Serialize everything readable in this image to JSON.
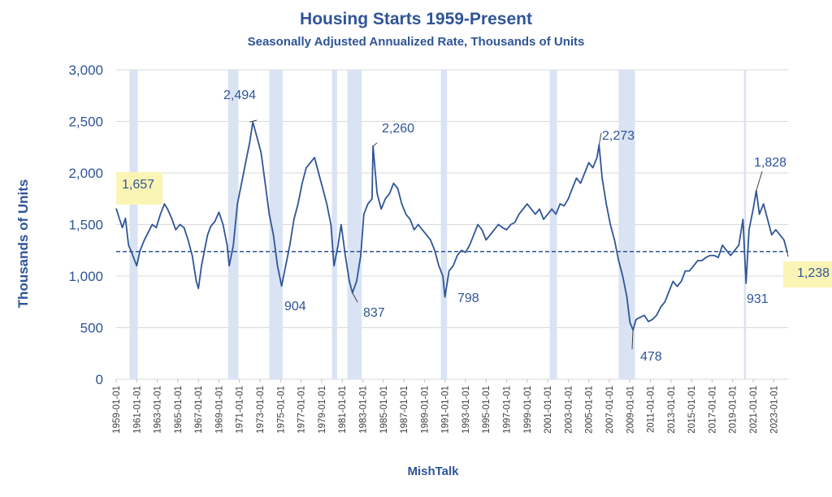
{
  "colors": {
    "line": "#2f5597",
    "recession": "#dae3f3",
    "highlight": "#fbf5b5",
    "text": "#2f5597",
    "grid": "#d9d9d9"
  },
  "chart_data": {
    "type": "line",
    "title": "Housing Starts 1959-Present",
    "subtitle": "Seasonally Adjusted Annualized Rate, Thousands of Units",
    "xlabel": "MishTalk",
    "ylabel": "Thousands of Units",
    "ylim": [
      0,
      3000
    ],
    "xlim": [
      1959.0,
      2024.4
    ],
    "grid": "horizontal",
    "y_ticks": [
      0,
      500,
      1000,
      1500,
      2000,
      2500,
      3000
    ],
    "y_tick_labels": [
      "0",
      "500",
      "1,000",
      "1,500",
      "2,000",
      "2,500",
      "3,000"
    ],
    "x_tick_labels": [
      "1959-01-01",
      "1961-01-01",
      "1963-01-01",
      "1965-01-01",
      "1967-01-01",
      "1969-01-01",
      "1971-01-01",
      "1973-01-01",
      "1975-01-01",
      "1977-01-01",
      "1979-01-01",
      "1981-01-01",
      "1983-01-01",
      "1985-01-01",
      "1987-01-01",
      "1989-01-01",
      "1991-01-01",
      "1993-01-01",
      "1995-01-01",
      "1997-01-01",
      "1999-01-01",
      "2001-01-01",
      "2003-01-01",
      "2005-01-01",
      "2007-01-01",
      "2009-01-01",
      "2011-01-01",
      "2013-01-01",
      "2015-01-01",
      "2017-01-01",
      "2019-01-01",
      "2021-01-01",
      "2023-01-01"
    ],
    "recessions": [
      [
        1960.3,
        1961.1
      ],
      [
        1969.9,
        1970.9
      ],
      [
        1973.9,
        1975.2
      ],
      [
        1980.0,
        1980.5
      ],
      [
        1981.5,
        1982.9
      ],
      [
        1990.6,
        1991.2
      ],
      [
        2001.2,
        2001.9
      ],
      [
        2007.9,
        2009.5
      ],
      [
        2020.1,
        2020.3
      ]
    ],
    "reference_line": {
      "value": 1238,
      "style": "dashed"
    },
    "annotations": [
      {
        "text": "1,657",
        "x": 1959.0,
        "y": 1657,
        "highlight": true
      },
      {
        "text": "2,494",
        "x": 1972.0,
        "y": 2494,
        "highlight": false
      },
      {
        "text": "904",
        "x": 1975.1,
        "y": 904,
        "highlight": false
      },
      {
        "text": "2,260",
        "x": 1984.0,
        "y": 2260,
        "highlight": false
      },
      {
        "text": "837",
        "x": 1982.0,
        "y": 837,
        "highlight": false
      },
      {
        "text": "798",
        "x": 1991.0,
        "y": 798,
        "highlight": false
      },
      {
        "text": "2,273",
        "x": 2006.0,
        "y": 2273,
        "highlight": false
      },
      {
        "text": "478",
        "x": 2009.3,
        "y": 478,
        "highlight": false
      },
      {
        "text": "1,828",
        "x": 2021.3,
        "y": 1828,
        "highlight": false
      },
      {
        "text": "931",
        "x": 2020.3,
        "y": 931,
        "highlight": false
      },
      {
        "text": "1,238",
        "x": 2024.3,
        "y": 1238,
        "highlight": true
      }
    ],
    "series": [
      {
        "values": [
          [
            1959.0,
            1657
          ],
          [
            1959.3,
            1560
          ],
          [
            1959.6,
            1470
          ],
          [
            1959.9,
            1560
          ],
          [
            1960.2,
            1300
          ],
          [
            1960.5,
            1230
          ],
          [
            1960.8,
            1150
          ],
          [
            1961.0,
            1100
          ],
          [
            1961.3,
            1240
          ],
          [
            1961.7,
            1340
          ],
          [
            1962.1,
            1420
          ],
          [
            1962.5,
            1500
          ],
          [
            1962.9,
            1470
          ],
          [
            1963.3,
            1600
          ],
          [
            1963.7,
            1700
          ],
          [
            1964.0,
            1650
          ],
          [
            1964.4,
            1560
          ],
          [
            1964.8,
            1450
          ],
          [
            1965.2,
            1500
          ],
          [
            1965.6,
            1470
          ],
          [
            1966.0,
            1350
          ],
          [
            1966.4,
            1200
          ],
          [
            1966.8,
            950
          ],
          [
            1967.0,
            880
          ],
          [
            1967.3,
            1100
          ],
          [
            1967.6,
            1250
          ],
          [
            1967.9,
            1400
          ],
          [
            1968.2,
            1480
          ],
          [
            1968.6,
            1530
          ],
          [
            1969.0,
            1620
          ],
          [
            1969.4,
            1500
          ],
          [
            1969.8,
            1300
          ],
          [
            1970.0,
            1100
          ],
          [
            1970.4,
            1300
          ],
          [
            1970.8,
            1700
          ],
          [
            1971.2,
            1900
          ],
          [
            1971.6,
            2100
          ],
          [
            1972.0,
            2300
          ],
          [
            1972.3,
            2494
          ],
          [
            1972.7,
            2350
          ],
          [
            1973.1,
            2200
          ],
          [
            1973.5,
            1900
          ],
          [
            1973.9,
            1600
          ],
          [
            1974.3,
            1400
          ],
          [
            1974.7,
            1100
          ],
          [
            1975.1,
            904
          ],
          [
            1975.5,
            1100
          ],
          [
            1975.9,
            1300
          ],
          [
            1976.3,
            1550
          ],
          [
            1976.7,
            1700
          ],
          [
            1977.1,
            1900
          ],
          [
            1977.5,
            2050
          ],
          [
            1977.9,
            2100
          ],
          [
            1978.3,
            2150
          ],
          [
            1978.7,
            2000
          ],
          [
            1979.1,
            1850
          ],
          [
            1979.5,
            1700
          ],
          [
            1979.9,
            1500
          ],
          [
            1980.2,
            1100
          ],
          [
            1980.6,
            1300
          ],
          [
            1980.9,
            1500
          ],
          [
            1981.3,
            1200
          ],
          [
            1981.7,
            950
          ],
          [
            1982.0,
            837
          ],
          [
            1982.4,
            950
          ],
          [
            1982.8,
            1200
          ],
          [
            1983.1,
            1600
          ],
          [
            1983.5,
            1700
          ],
          [
            1983.9,
            1750
          ],
          [
            1984.0,
            2260
          ],
          [
            1984.4,
            1800
          ],
          [
            1984.8,
            1650
          ],
          [
            1985.2,
            1750
          ],
          [
            1985.6,
            1800
          ],
          [
            1986.0,
            1900
          ],
          [
            1986.4,
            1850
          ],
          [
            1986.8,
            1700
          ],
          [
            1987.2,
            1600
          ],
          [
            1987.6,
            1550
          ],
          [
            1988.0,
            1450
          ],
          [
            1988.4,
            1500
          ],
          [
            1988.8,
            1450
          ],
          [
            1989.2,
            1400
          ],
          [
            1989.6,
            1350
          ],
          [
            1990.0,
            1250
          ],
          [
            1990.4,
            1100
          ],
          [
            1990.8,
            1000
          ],
          [
            1991.0,
            798
          ],
          [
            1991.4,
            1050
          ],
          [
            1991.8,
            1100
          ],
          [
            1992.2,
            1200
          ],
          [
            1992.6,
            1250
          ],
          [
            1993.0,
            1230
          ],
          [
            1993.4,
            1300
          ],
          [
            1993.8,
            1400
          ],
          [
            1994.2,
            1500
          ],
          [
            1994.6,
            1450
          ],
          [
            1995.0,
            1350
          ],
          [
            1995.4,
            1400
          ],
          [
            1995.8,
            1450
          ],
          [
            1996.2,
            1500
          ],
          [
            1996.6,
            1470
          ],
          [
            1997.0,
            1450
          ],
          [
            1997.4,
            1500
          ],
          [
            1997.8,
            1520
          ],
          [
            1998.2,
            1600
          ],
          [
            1998.6,
            1650
          ],
          [
            1999.0,
            1700
          ],
          [
            1999.4,
            1650
          ],
          [
            1999.8,
            1600
          ],
          [
            2000.2,
            1650
          ],
          [
            2000.6,
            1550
          ],
          [
            2001.0,
            1600
          ],
          [
            2001.4,
            1650
          ],
          [
            2001.8,
            1600
          ],
          [
            2002.2,
            1700
          ],
          [
            2002.6,
            1680
          ],
          [
            2003.0,
            1750
          ],
          [
            2003.4,
            1850
          ],
          [
            2003.8,
            1950
          ],
          [
            2004.2,
            1900
          ],
          [
            2004.6,
            2000
          ],
          [
            2005.0,
            2100
          ],
          [
            2005.4,
            2050
          ],
          [
            2005.8,
            2150
          ],
          [
            2006.0,
            2273
          ],
          [
            2006.3,
            1950
          ],
          [
            2006.7,
            1700
          ],
          [
            2007.1,
            1500
          ],
          [
            2007.5,
            1350
          ],
          [
            2007.9,
            1150
          ],
          [
            2008.3,
            1000
          ],
          [
            2008.7,
            800
          ],
          [
            2009.0,
            550
          ],
          [
            2009.3,
            478
          ],
          [
            2009.6,
            580
          ],
          [
            2010.0,
            600
          ],
          [
            2010.4,
            620
          ],
          [
            2010.8,
            560
          ],
          [
            2011.2,
            580
          ],
          [
            2011.6,
            620
          ],
          [
            2012.0,
            700
          ],
          [
            2012.4,
            750
          ],
          [
            2012.8,
            850
          ],
          [
            2013.2,
            950
          ],
          [
            2013.6,
            900
          ],
          [
            2014.0,
            950
          ],
          [
            2014.4,
            1050
          ],
          [
            2014.8,
            1050
          ],
          [
            2015.2,
            1100
          ],
          [
            2015.6,
            1150
          ],
          [
            2016.0,
            1150
          ],
          [
            2016.4,
            1180
          ],
          [
            2016.8,
            1200
          ],
          [
            2017.2,
            1200
          ],
          [
            2017.6,
            1180
          ],
          [
            2018.0,
            1300
          ],
          [
            2018.4,
            1250
          ],
          [
            2018.8,
            1200
          ],
          [
            2019.2,
            1250
          ],
          [
            2019.6,
            1300
          ],
          [
            2020.0,
            1550
          ],
          [
            2020.3,
            931
          ],
          [
            2020.6,
            1450
          ],
          [
            2021.0,
            1650
          ],
          [
            2021.3,
            1828
          ],
          [
            2021.6,
            1600
          ],
          [
            2022.0,
            1700
          ],
          [
            2022.4,
            1550
          ],
          [
            2022.8,
            1400
          ],
          [
            2023.2,
            1450
          ],
          [
            2023.6,
            1400
          ],
          [
            2024.0,
            1350
          ],
          [
            2024.3,
            1238
          ]
        ]
      }
    ]
  }
}
